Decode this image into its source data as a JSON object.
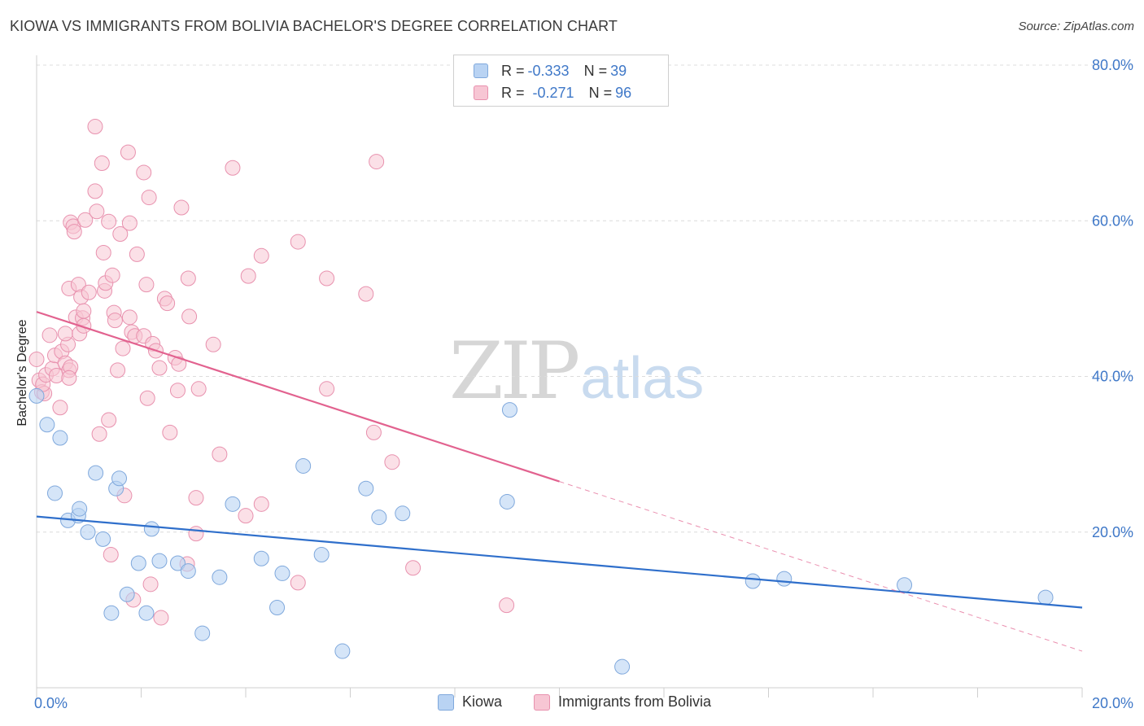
{
  "title": "KIOWA VS IMMIGRANTS FROM BOLIVIA BACHELOR'S DEGREE CORRELATION CHART",
  "source": "Source: ZipAtlas.com",
  "watermark": {
    "zip": "ZIP",
    "atlas": "atlas"
  },
  "legend": {
    "r_label": "R =",
    "n_label": "N =",
    "rows": [
      {
        "r": "-0.333",
        "n": "39"
      },
      {
        "r": "-0.271",
        "n": "96"
      }
    ]
  },
  "bottom_legend": [
    "Kiowa",
    "Immigrants from Bolivia"
  ],
  "chart_data": {
    "type": "scatter",
    "ylabel": "Bachelor's Degree",
    "xlim": [
      0,
      20
    ],
    "ylim": [
      0,
      80
    ],
    "x_tick_labels": [
      {
        "value": 0,
        "label": "0.0%"
      },
      {
        "value": 20,
        "label": "20.0%"
      }
    ],
    "y_tick_labels": [
      {
        "value": 20,
        "label": "20.0%"
      },
      {
        "value": 40,
        "label": "40.0%"
      },
      {
        "value": 60,
        "label": "60.0%"
      },
      {
        "value": 80,
        "label": "80.0%"
      }
    ],
    "grid": true,
    "legend_position": "top-center",
    "colors": {
      "kiowa_fill": "#b9d3f3",
      "kiowa_stroke": "#7fa8dc",
      "kiowa_line": "#2f6fcb",
      "bolivia_fill": "#f7c6d4",
      "bolivia_stroke": "#e891ae",
      "bolivia_line": "#e2628f",
      "grid": "#dcdcdc",
      "tick": "#3f78c8"
    },
    "series": [
      {
        "name": "Kiowa",
        "trend": {
          "x0": 0,
          "y0": 22.0,
          "x1": 20,
          "y1": 10.3
        },
        "points": [
          [
            0.0,
            37.5
          ],
          [
            0.2,
            33.8
          ],
          [
            0.35,
            25.0
          ],
          [
            0.45,
            32.1
          ],
          [
            0.6,
            21.5
          ],
          [
            0.8,
            22.1
          ],
          [
            0.82,
            23.0
          ],
          [
            0.98,
            20.0
          ],
          [
            1.13,
            27.6
          ],
          [
            1.27,
            19.1
          ],
          [
            1.43,
            9.6
          ],
          [
            1.52,
            25.6
          ],
          [
            1.58,
            26.9
          ],
          [
            1.73,
            12.0
          ],
          [
            1.95,
            16.0
          ],
          [
            2.1,
            9.6
          ],
          [
            2.2,
            20.4
          ],
          [
            2.35,
            16.3
          ],
          [
            2.7,
            16.0
          ],
          [
            2.9,
            15.0
          ],
          [
            3.17,
            7.0
          ],
          [
            3.5,
            14.2
          ],
          [
            3.75,
            23.6
          ],
          [
            4.3,
            16.6
          ],
          [
            4.6,
            10.3
          ],
          [
            4.7,
            14.7
          ],
          [
            5.1,
            28.5
          ],
          [
            5.45,
            17.1
          ],
          [
            5.85,
            4.7
          ],
          [
            6.3,
            25.6
          ],
          [
            6.55,
            21.9
          ],
          [
            7.0,
            22.4
          ],
          [
            9.05,
            35.7
          ],
          [
            9.0,
            23.9
          ],
          [
            11.2,
            2.7
          ],
          [
            13.7,
            13.7
          ],
          [
            14.3,
            14.0
          ],
          [
            16.6,
            13.2
          ],
          [
            19.3,
            11.6
          ]
        ]
      },
      {
        "name": "Immigrants from Bolivia",
        "trend": {
          "x0": 0,
          "y0": 48.3,
          "x1": 10,
          "y1": 26.5
        },
        "trend_extension": {
          "x0": 10,
          "y0": 26.5,
          "x1": 20,
          "y1": 4.7
        },
        "points": [
          [
            0.0,
            42.2
          ],
          [
            0.05,
            39.5
          ],
          [
            0.1,
            38.0
          ],
          [
            0.15,
            37.8
          ],
          [
            0.12,
            39.0
          ],
          [
            0.18,
            40.2
          ],
          [
            0.25,
            45.3
          ],
          [
            0.3,
            41.0
          ],
          [
            0.35,
            42.7
          ],
          [
            0.38,
            40.1
          ],
          [
            0.45,
            36.0
          ],
          [
            0.48,
            43.2
          ],
          [
            0.55,
            41.7
          ],
          [
            0.6,
            44.1
          ],
          [
            0.55,
            45.5
          ],
          [
            0.62,
            40.8
          ],
          [
            0.65,
            41.2
          ],
          [
            0.62,
            39.8
          ],
          [
            0.62,
            51.3
          ],
          [
            0.65,
            59.8
          ],
          [
            0.7,
            59.3
          ],
          [
            0.72,
            58.6
          ],
          [
            0.75,
            47.6
          ],
          [
            0.8,
            51.8
          ],
          [
            0.82,
            45.5
          ],
          [
            0.85,
            50.2
          ],
          [
            0.88,
            47.5
          ],
          [
            0.9,
            48.4
          ],
          [
            0.9,
            46.5
          ],
          [
            0.93,
            60.1
          ],
          [
            1.0,
            50.8
          ],
          [
            1.12,
            72.1
          ],
          [
            1.12,
            63.8
          ],
          [
            1.15,
            61.2
          ],
          [
            1.2,
            32.6
          ],
          [
            1.25,
            67.4
          ],
          [
            1.28,
            55.9
          ],
          [
            1.3,
            51.0
          ],
          [
            1.32,
            52.0
          ],
          [
            1.38,
            34.4
          ],
          [
            1.38,
            59.9
          ],
          [
            1.45,
            53.0
          ],
          [
            1.48,
            48.2
          ],
          [
            1.5,
            47.2
          ],
          [
            1.55,
            40.8
          ],
          [
            1.6,
            58.3
          ],
          [
            1.65,
            43.6
          ],
          [
            1.68,
            24.7
          ],
          [
            1.75,
            68.8
          ],
          [
            1.78,
            47.6
          ],
          [
            1.78,
            59.7
          ],
          [
            1.82,
            45.7
          ],
          [
            1.88,
            45.2
          ],
          [
            1.92,
            55.7
          ],
          [
            2.05,
            45.2
          ],
          [
            2.05,
            66.2
          ],
          [
            2.1,
            51.8
          ],
          [
            2.12,
            37.2
          ],
          [
            2.15,
            63.0
          ],
          [
            2.22,
            44.2
          ],
          [
            2.28,
            43.3
          ],
          [
            2.35,
            41.1
          ],
          [
            2.45,
            50.0
          ],
          [
            2.5,
            49.4
          ],
          [
            2.55,
            32.8
          ],
          [
            2.65,
            42.4
          ],
          [
            2.7,
            38.2
          ],
          [
            2.72,
            41.6
          ],
          [
            2.77,
            61.7
          ],
          [
            2.9,
            52.6
          ],
          [
            2.92,
            47.7
          ],
          [
            3.05,
            24.4
          ],
          [
            3.05,
            19.8
          ],
          [
            3.1,
            38.4
          ],
          [
            3.38,
            44.1
          ],
          [
            3.5,
            30.0
          ],
          [
            3.75,
            66.8
          ],
          [
            4.0,
            22.1
          ],
          [
            4.05,
            52.9
          ],
          [
            4.3,
            23.6
          ],
          [
            4.3,
            55.5
          ],
          [
            5.0,
            57.3
          ],
          [
            5.0,
            13.5
          ],
          [
            5.55,
            38.4
          ],
          [
            5.55,
            52.6
          ],
          [
            6.3,
            50.6
          ],
          [
            6.45,
            32.8
          ],
          [
            6.5,
            67.6
          ],
          [
            6.8,
            29.0
          ],
          [
            7.2,
            15.4
          ],
          [
            8.99,
            10.6
          ],
          [
            1.42,
            17.1
          ],
          [
            1.85,
            11.3
          ],
          [
            2.18,
            13.3
          ],
          [
            2.38,
            9.0
          ],
          [
            2.88,
            15.9
          ]
        ]
      }
    ]
  }
}
